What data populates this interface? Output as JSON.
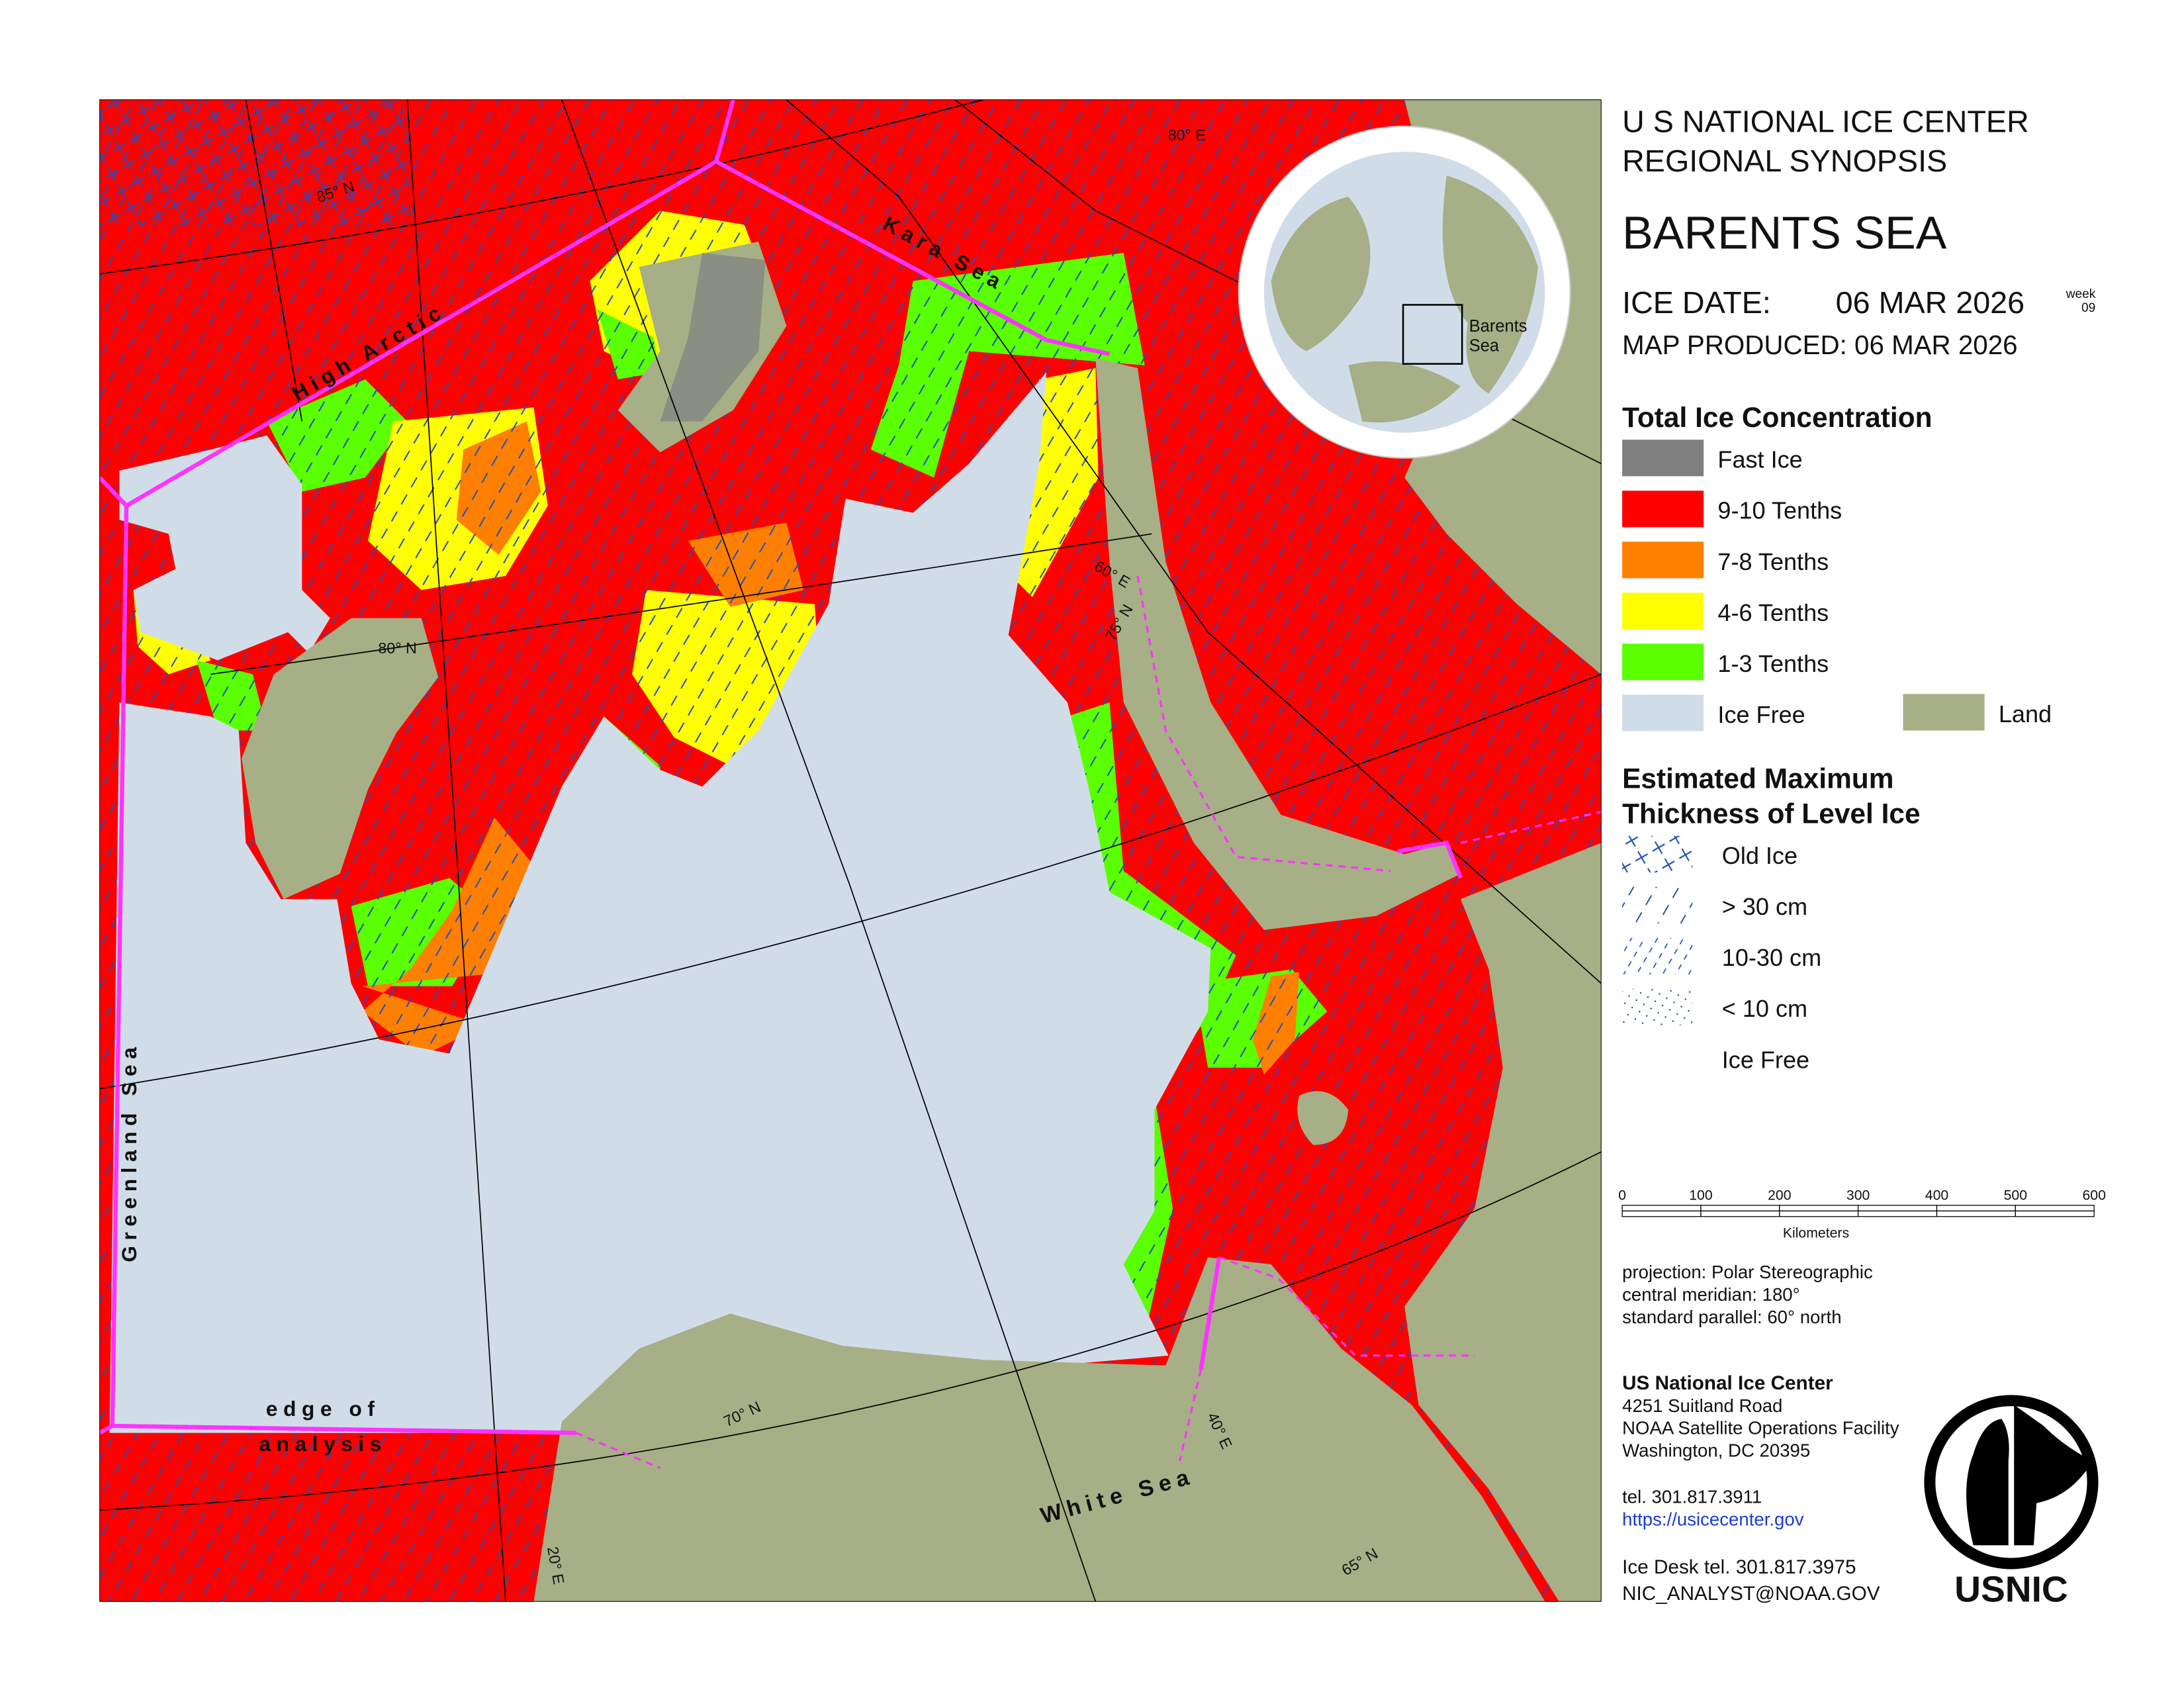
{
  "header": {
    "agency": "U S NATIONAL ICE CENTER",
    "product": "REGIONAL SYNOPSIS",
    "region": "BARENTS SEA",
    "ice_date_label": "ICE DATE:",
    "ice_date": "06 MAR 2026",
    "week_label": "week",
    "week": "09",
    "map_produced": "MAP PRODUCED:  06 MAR 2026"
  },
  "inset": {
    "label_lines": [
      "Barents",
      "Sea"
    ]
  },
  "legend_concentration": {
    "title": "Total Ice Concentration",
    "items": [
      {
        "label": "Fast Ice",
        "color": "#808080"
      },
      {
        "label": "9-10 Tenths",
        "color": "#ff0000"
      },
      {
        "label": "7-8 Tenths",
        "color": "#ff7f00"
      },
      {
        "label": "4-6 Tenths",
        "color": "#ffff00"
      },
      {
        "label": "1-3 Tenths",
        "color": "#5aff00"
      },
      {
        "label": "Ice Free",
        "color": "#d0dde9"
      },
      {
        "label": "Land",
        "color": "#a6af86"
      }
    ]
  },
  "legend_thickness": {
    "title_lines": [
      "Estimated Maximum",
      "Thickness of Level Ice"
    ],
    "items": [
      "Old Ice",
      "> 30 cm",
      "10-30 cm",
      "< 10 cm",
      "Ice Free"
    ]
  },
  "scale": {
    "labels": [
      "0",
      "100",
      "200",
      "300",
      "400",
      "500",
      "600"
    ],
    "unit": "Kilometers"
  },
  "projection": [
    "projection: Polar Stereographic",
    "central meridian: 180°",
    "standard parallel:  60° north"
  ],
  "contact": {
    "name": "US National Ice Center",
    "address": [
      "4251 Suitland Road",
      "NOAA Satellite Operations Facility",
      "Washington, DC  20395"
    ],
    "tel": "tel. 301.817.3911",
    "url": "https://usicecenter.gov",
    "desk": "Ice Desk tel. 301.817.3975",
    "email": "NIC_ANALYST@NOAA.GOV",
    "logo": "USNIC"
  },
  "map_labels": [
    "High Arctic",
    "Kara Sea",
    "Greenland Sea",
    "edge of",
    "analysis",
    "White Sea",
    "85° N",
    "80° E",
    "80° N",
    "60° E",
    "75° N",
    "70° N",
    "20° E",
    "40° E",
    "65° N"
  ]
}
